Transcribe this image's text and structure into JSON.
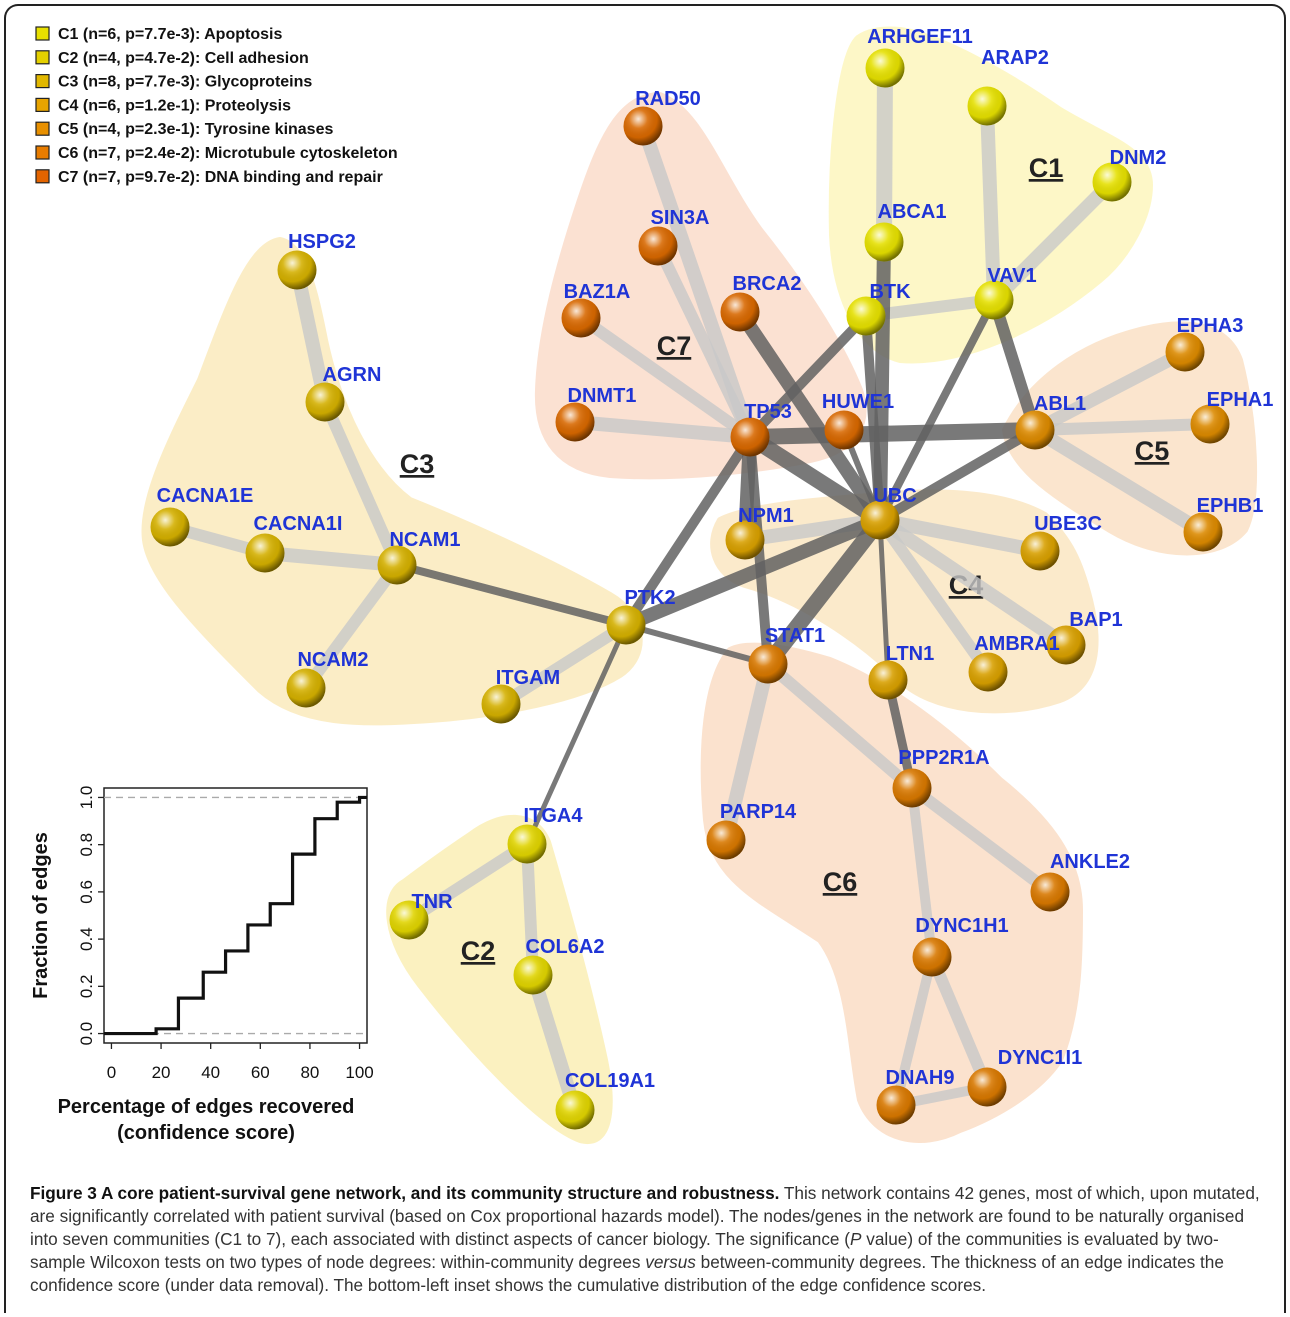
{
  "legend": [
    {
      "id": "C1",
      "text": "C1 (n=6, p=7.7e-3): Apoptosis",
      "color": "#e8e000"
    },
    {
      "id": "C2",
      "text": "C2 (n=4, p=4.7e-2): Cell adhesion",
      "color": "#e4d000"
    },
    {
      "id": "C3",
      "text": "C3 (n=8, p=7.7e-3): Glycoproteins",
      "color": "#e2b800"
    },
    {
      "id": "C4",
      "text": "C4 (n=6, p=1.2e-1): Proteolysis",
      "color": "#e8a400"
    },
    {
      "id": "C5",
      "text": "C5 (n=4, p=2.3e-1): Tyrosine kinases",
      "color": "#e89000"
    },
    {
      "id": "C6",
      "text": "C6 (n=7, p=2.4e-2): Microtubule cytoskeleton",
      "color": "#e87c00"
    },
    {
      "id": "C7",
      "text": "C7 (n=7, p=9.7e-2): DNA binding and repair",
      "color": "#e46400"
    }
  ],
  "communities": [
    {
      "id": "C1",
      "label": "C1",
      "fill": "#fdf7c3"
    },
    {
      "id": "C2",
      "label": "C2",
      "fill": "#fbf0bb"
    },
    {
      "id": "C3",
      "label": "C3",
      "fill": "#fbecc2"
    },
    {
      "id": "C4",
      "label": "C4",
      "fill": "#fbe9c7"
    },
    {
      "id": "C5",
      "label": "C5",
      "fill": "#fbe3ca"
    },
    {
      "id": "C6",
      "label": "C6",
      "fill": "#fbe0ca"
    },
    {
      "id": "C7",
      "label": "C7",
      "fill": "#fbdfcf"
    }
  ],
  "nodes": [
    {
      "name": "ARHGEF11",
      "color": "#e5e000"
    },
    {
      "name": "ARAP2",
      "color": "#e5e000"
    },
    {
      "name": "DNM2",
      "color": "#e5e000"
    },
    {
      "name": "ABCA1",
      "color": "#e5e000"
    },
    {
      "name": "BTK",
      "color": "#e5e000"
    },
    {
      "name": "VAV1",
      "color": "#e5e000"
    },
    {
      "name": "RAD50",
      "color": "#d86800"
    },
    {
      "name": "SIN3A",
      "color": "#d86800"
    },
    {
      "name": "BAZ1A",
      "color": "#d86800"
    },
    {
      "name": "BRCA2",
      "color": "#d86800"
    },
    {
      "name": "DNMT1",
      "color": "#d86800"
    },
    {
      "name": "TP53",
      "color": "#d86800"
    },
    {
      "name": "HUWE1",
      "color": "#d86800"
    },
    {
      "name": "HSPG2",
      "color": "#d4b000"
    },
    {
      "name": "AGRN",
      "color": "#d4b000"
    },
    {
      "name": "CACNA1E",
      "color": "#d4b000"
    },
    {
      "name": "CACNA1I",
      "color": "#d4b000"
    },
    {
      "name": "NCAM1",
      "color": "#d4b000"
    },
    {
      "name": "NCAM2",
      "color": "#d4b000"
    },
    {
      "name": "ITGAM",
      "color": "#d4b000"
    },
    {
      "name": "PTK2",
      "color": "#d4b000"
    },
    {
      "name": "EPHA3",
      "color": "#dc8a00"
    },
    {
      "name": "EPHA1",
      "color": "#dc8a00"
    },
    {
      "name": "ABL1",
      "color": "#dc8a00"
    },
    {
      "name": "EPHB1",
      "color": "#dc8a00"
    },
    {
      "name": "UBC",
      "color": "#d8a000"
    },
    {
      "name": "NPM1",
      "color": "#d8a000"
    },
    {
      "name": "UBE3C",
      "color": "#d8a000"
    },
    {
      "name": "BAP1",
      "color": "#d8a000"
    },
    {
      "name": "AMBRA1",
      "color": "#d8a000"
    },
    {
      "name": "LTN1",
      "color": "#d8a000"
    },
    {
      "name": "STAT1",
      "color": "#d87800"
    },
    {
      "name": "PPP2R1A",
      "color": "#d87800"
    },
    {
      "name": "PARP14",
      "color": "#d87800"
    },
    {
      "name": "ANKLE2",
      "color": "#d87800"
    },
    {
      "name": "DYNC1H1",
      "color": "#d87800"
    },
    {
      "name": "DYNC1I1",
      "color": "#d87800"
    },
    {
      "name": "DNAH9",
      "color": "#d87800"
    },
    {
      "name": "ITGA4",
      "color": "#e0d400"
    },
    {
      "name": "TNR",
      "color": "#e0d400"
    },
    {
      "name": "COL6A2",
      "color": "#e0d400"
    },
    {
      "name": "COL19A1",
      "color": "#e0d400"
    }
  ],
  "edges": [
    {
      "a": "ARHGEF11",
      "b": "ABCA1",
      "type": "within"
    },
    {
      "a": "ARAP2",
      "b": "VAV1",
      "type": "within"
    },
    {
      "a": "DNM2",
      "b": "VAV1",
      "type": "within"
    },
    {
      "a": "BTK",
      "b": "VAV1",
      "type": "within"
    },
    {
      "a": "RAD50",
      "b": "TP53",
      "type": "within"
    },
    {
      "a": "SIN3A",
      "b": "TP53",
      "type": "within"
    },
    {
      "a": "BAZ1A",
      "b": "TP53",
      "type": "within"
    },
    {
      "a": "DNMT1",
      "b": "TP53",
      "type": "within"
    },
    {
      "a": "HSPG2",
      "b": "AGRN",
      "type": "within"
    },
    {
      "a": "AGRN",
      "b": "NCAM1",
      "type": "within"
    },
    {
      "a": "CACNA1E",
      "b": "CACNA1I",
      "type": "within"
    },
    {
      "a": "CACNA1I",
      "b": "NCAM1",
      "type": "within"
    },
    {
      "a": "NCAM1",
      "b": "NCAM2",
      "type": "within"
    },
    {
      "a": "ITGAM",
      "b": "PTK2",
      "type": "within"
    },
    {
      "a": "ABL1",
      "b": "EPHA3",
      "type": "within"
    },
    {
      "a": "ABL1",
      "b": "EPHA1",
      "type": "within"
    },
    {
      "a": "ABL1",
      "b": "EPHB1",
      "type": "within"
    },
    {
      "a": "UBC",
      "b": "NPM1",
      "type": "within"
    },
    {
      "a": "UBC",
      "b": "UBE3C",
      "type": "within"
    },
    {
      "a": "UBC",
      "b": "BAP1",
      "type": "within"
    },
    {
      "a": "UBC",
      "b": "AMBRA1",
      "type": "within"
    },
    {
      "a": "STAT1",
      "b": "PARP14",
      "type": "within"
    },
    {
      "a": "STAT1",
      "b": "PPP2R1A",
      "type": "within"
    },
    {
      "a": "PPP2R1A",
      "b": "ANKLE2",
      "type": "within"
    },
    {
      "a": "PPP2R1A",
      "b": "DYNC1H1",
      "type": "within"
    },
    {
      "a": "DYNC1H1",
      "b": "DNAH9",
      "type": "within"
    },
    {
      "a": "DYNC1H1",
      "b": "DYNC1I1",
      "type": "within"
    },
    {
      "a": "DNAH9",
      "b": "DYNC1I1",
      "type": "within"
    },
    {
      "a": "ITGA4",
      "b": "TNR",
      "type": "within"
    },
    {
      "a": "ITGA4",
      "b": "COL6A2",
      "type": "within"
    },
    {
      "a": "COL6A2",
      "b": "COL19A1",
      "type": "within"
    },
    {
      "a": "TP53",
      "b": "ABL1",
      "type": "between"
    },
    {
      "a": "BRCA2",
      "b": "UBC",
      "type": "between"
    },
    {
      "a": "TP53",
      "b": "UBC",
      "type": "between"
    },
    {
      "a": "TP53",
      "b": "NPM1",
      "type": "between"
    },
    {
      "a": "TP53",
      "b": "STAT1",
      "type": "between"
    },
    {
      "a": "TP53",
      "b": "PTK2",
      "type": "between"
    },
    {
      "a": "HUWE1",
      "b": "UBC",
      "type": "between"
    },
    {
      "a": "ABCA1",
      "b": "UBC",
      "type": "between"
    },
    {
      "a": "BTK",
      "b": "UBC",
      "type": "between"
    },
    {
      "a": "BTK",
      "b": "TP53",
      "type": "between"
    },
    {
      "a": "VAV1",
      "b": "UBC",
      "type": "between"
    },
    {
      "a": "VAV1",
      "b": "ABL1",
      "type": "between"
    },
    {
      "a": "ABL1",
      "b": "UBC",
      "type": "between"
    },
    {
      "a": "UBC",
      "b": "STAT1",
      "type": "between"
    },
    {
      "a": "UBC",
      "b": "PTK2",
      "type": "between"
    },
    {
      "a": "UBC",
      "b": "LTN1",
      "type": "between"
    },
    {
      "a": "LTN1",
      "b": "PPP2R1A",
      "type": "between"
    },
    {
      "a": "PTK2",
      "b": "NCAM1",
      "type": "between"
    },
    {
      "a": "PTK2",
      "b": "STAT1",
      "type": "between"
    },
    {
      "a": "PTK2",
      "b": "ITGA4",
      "type": "between"
    }
  ],
  "inset": {
    "ylabel": "Fraction of edges",
    "xlabel_line1": "Percentage of edges recovered",
    "xlabel_line2": "(confidence score)",
    "xticks": [
      "0",
      "20",
      "40",
      "60",
      "80",
      "100"
    ],
    "yticks": [
      "0.0",
      "0.2",
      "0.4",
      "0.6",
      "0.8",
      "1.0"
    ]
  },
  "chart_data": {
    "type": "line",
    "title": "",
    "xlabel": "Percentage of edges recovered (confidence score)",
    "ylabel": "Fraction of edges",
    "xlim": [
      -3,
      103
    ],
    "ylim": [
      -0.04,
      1.04
    ],
    "grid": false,
    "reference_lines_y": [
      0.0,
      1.0
    ],
    "series": [
      {
        "step": true,
        "x": [
          -3,
          0,
          10,
          18,
          20,
          27,
          37,
          46,
          55,
          64,
          73,
          82,
          91,
          100,
          103
        ],
        "y": [
          0.0,
          0.0,
          0.0,
          0.02,
          0.02,
          0.15,
          0.26,
          0.35,
          0.46,
          0.55,
          0.76,
          0.91,
          0.98,
          1.0,
          1.0
        ]
      }
    ]
  },
  "caption": {
    "title": "Figure 3 A core patient-survival gene network, and its community structure and robustness.",
    "body1": " This network contains 42 genes, most of which, upon mutated, are significantly correlated with patient survival (based on Cox proportional hazards model). The nodes/genes in the network are found to be naturally organised into seven communities (C1 to 7), each associated with distinct aspects of cancer biology. The significance (",
    "italic1": "P",
    "body2": " value) of the communities is evaluated by two-sample Wilcoxon tests on two types of node degrees: within-community degrees ",
    "italic2": "versus",
    "body3": " between-community degrees. The thickness of an edge indicates the confidence score (under data removal). The bottom-left inset shows the cumulative distribution of the edge confidence scores."
  }
}
